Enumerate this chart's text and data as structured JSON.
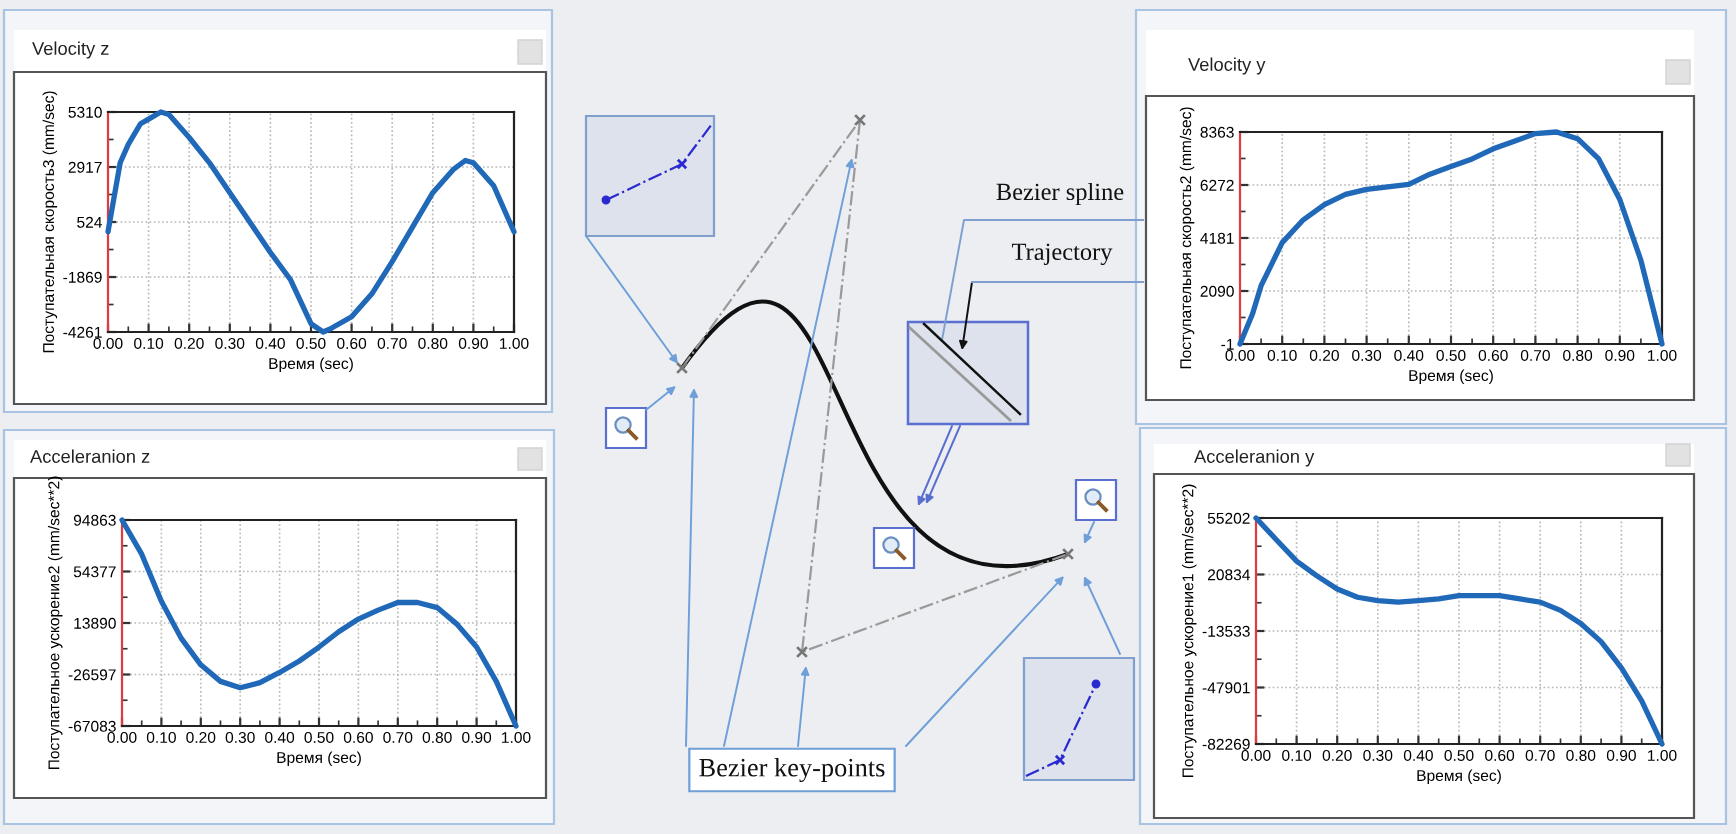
{
  "chart_data": [
    {
      "type": "line",
      "title": "Velocity z",
      "xlabel": "Время (sec)",
      "ylabel": "Поступательная скорость3 (mm/sec)",
      "x": [
        0,
        0.03,
        0.05,
        0.08,
        0.1,
        0.13,
        0.15,
        0.2,
        0.25,
        0.3,
        0.35,
        0.4,
        0.45,
        0.5,
        0.53,
        0.55,
        0.6,
        0.65,
        0.7,
        0.75,
        0.8,
        0.85,
        0.88,
        0.9,
        0.95,
        1
      ],
      "series": [
        {
          "color": "#2068b8",
          "values": [
            100,
            3100,
            3900,
            4800,
            5000,
            5310,
            5200,
            4200,
            3100,
            1800,
            500,
            -800,
            -2000,
            -3900,
            -4261,
            -4100,
            -3600,
            -2600,
            -1200,
            300,
            1800,
            2800,
            3200,
            3100,
            2100,
            100
          ]
        }
      ],
      "xlim": [
        0,
        1
      ],
      "ylim": [
        -4261,
        5310
      ],
      "xticks": [
        {
          "value": 0,
          "label": "0.00"
        },
        {
          "value": 0.1,
          "label": "0.10"
        },
        {
          "value": 0.2,
          "label": "0.20"
        },
        {
          "value": 0.3,
          "label": "0.30"
        },
        {
          "value": 0.4,
          "label": "0.40"
        },
        {
          "value": 0.5,
          "label": "0.50"
        },
        {
          "value": 0.6,
          "label": "0.60"
        },
        {
          "value": 0.7,
          "label": "0.70"
        },
        {
          "value": 0.8,
          "label": "0.80"
        },
        {
          "value": 0.9,
          "label": "0.90"
        },
        {
          "value": 1,
          "label": "1.00"
        },
        {
          "value": 0.05,
          "label": null
        },
        {
          "value": 0.15,
          "label": null
        },
        {
          "value": 0.25,
          "label": null
        },
        {
          "value": 0.35,
          "label": null
        },
        {
          "value": 0.45,
          "label": null
        },
        {
          "value": 0.55,
          "label": null
        },
        {
          "value": 0.65,
          "label": null
        },
        {
          "value": 0.75,
          "label": null
        },
        {
          "value": 0.85,
          "label": null
        },
        {
          "value": 0.95,
          "label": null
        }
      ],
      "yticks": [
        -4261,
        -1869,
        524,
        2917,
        5310,
        {
          "value": -3065,
          "label": null
        },
        {
          "value": -673,
          "label": null
        },
        {
          "value": 1721,
          "label": null
        },
        {
          "value": 4114,
          "label": null
        }
      ],
      "grid": true
    },
    {
      "type": "other",
      "annotations": [
        "Bezier spline",
        "Trajectory",
        "Bezier key-points"
      ]
    },
    {
      "type": "line",
      "title": "Velocity y",
      "xlabel": "Время (sec)",
      "ylabel": "Поступательная скорость2 (mm/sec)",
      "x": [
        0,
        0.03,
        0.05,
        0.1,
        0.15,
        0.2,
        0.25,
        0.3,
        0.35,
        0.4,
        0.45,
        0.5,
        0.55,
        0.6,
        0.65,
        0.7,
        0.75,
        0.8,
        0.85,
        0.9,
        0.95,
        1
      ],
      "series": [
        {
          "color": "#2068b8",
          "values": [
            -1,
            1200,
            2300,
            4000,
            4900,
            5500,
            5900,
            6100,
            6200,
            6300,
            6700,
            7000,
            7300,
            7700,
            8000,
            8300,
            8363,
            8100,
            7300,
            5700,
            3300,
            -1
          ]
        }
      ],
      "xlim": [
        0,
        1
      ],
      "ylim": [
        -1,
        8363
      ],
      "xticks": [
        {
          "value": 0,
          "label": "0.00"
        },
        {
          "value": 0.1,
          "label": "0.10"
        },
        {
          "value": 0.2,
          "label": "0.20"
        },
        {
          "value": 0.3,
          "label": "0.30"
        },
        {
          "value": 0.4,
          "label": "0.40"
        },
        {
          "value": 0.5,
          "label": "0.50"
        },
        {
          "value": 0.6,
          "label": "0.60"
        },
        {
          "value": 0.7,
          "label": "0.70"
        },
        {
          "value": 0.8,
          "label": "0.80"
        },
        {
          "value": 0.9,
          "label": "0.90"
        },
        {
          "value": 1,
          "label": "1.00"
        },
        {
          "value": 0.05,
          "label": null
        },
        {
          "value": 0.15,
          "label": null
        },
        {
          "value": 0.25,
          "label": null
        },
        {
          "value": 0.35,
          "label": null
        },
        {
          "value": 0.45,
          "label": null
        },
        {
          "value": 0.55,
          "label": null
        },
        {
          "value": 0.65,
          "label": null
        },
        {
          "value": 0.75,
          "label": null
        },
        {
          "value": 0.85,
          "label": null
        },
        {
          "value": 0.95,
          "label": null
        }
      ],
      "yticks": [
        -1,
        2090,
        4181,
        6272,
        8363,
        {
          "value": 1045,
          "label": null
        },
        {
          "value": 3136,
          "label": null
        },
        {
          "value": 5227,
          "label": null
        },
        {
          "value": 7318,
          "label": null
        }
      ],
      "grid": true
    },
    {
      "type": "line",
      "title": "Acceleranion z",
      "xlabel": "Время (sec)",
      "ylabel": "Поступательное ускорение2 (mm/sec**2)",
      "x": [
        0,
        0.05,
        0.1,
        0.15,
        0.2,
        0.25,
        0.3,
        0.35,
        0.4,
        0.45,
        0.5,
        0.55,
        0.6,
        0.65,
        0.7,
        0.75,
        0.8,
        0.85,
        0.9,
        0.95,
        1
      ],
      "series": [
        {
          "color": "#2068b8",
          "values": [
            94863,
            68000,
            31000,
            2000,
            -19000,
            -32000,
            -37000,
            -33000,
            -25000,
            -16000,
            -5000,
            7000,
            17000,
            24000,
            30000,
            30000,
            26000,
            13000,
            -5000,
            -32000,
            -67083
          ]
        }
      ],
      "xlim": [
        0,
        1
      ],
      "ylim": [
        -67083,
        94863
      ],
      "xticks": [
        {
          "value": 0,
          "label": "0.00"
        },
        {
          "value": 0.1,
          "label": "0.10"
        },
        {
          "value": 0.2,
          "label": "0.20"
        },
        {
          "value": 0.3,
          "label": "0.30"
        },
        {
          "value": 0.4,
          "label": "0.40"
        },
        {
          "value": 0.5,
          "label": "0.50"
        },
        {
          "value": 0.6,
          "label": "0.60"
        },
        {
          "value": 0.7,
          "label": "0.70"
        },
        {
          "value": 0.8,
          "label": "0.80"
        },
        {
          "value": 0.9,
          "label": "0.90"
        },
        {
          "value": 1,
          "label": "1.00"
        },
        {
          "value": 0.05,
          "label": null
        },
        {
          "value": 0.15,
          "label": null
        },
        {
          "value": 0.25,
          "label": null
        },
        {
          "value": 0.35,
          "label": null
        },
        {
          "value": 0.45,
          "label": null
        },
        {
          "value": 0.55,
          "label": null
        },
        {
          "value": 0.65,
          "label": null
        },
        {
          "value": 0.75,
          "label": null
        },
        {
          "value": 0.85,
          "label": null
        },
        {
          "value": 0.95,
          "label": null
        }
      ],
      "yticks": [
        -67083,
        -26597,
        13890,
        54377,
        94863,
        {
          "value": -46840,
          "label": null
        },
        {
          "value": -6354,
          "label": null
        },
        {
          "value": 34134,
          "label": null
        },
        {
          "value": 74620,
          "label": null
        }
      ],
      "grid": true
    },
    {
      "type": "line",
      "title": "Acceleranion y",
      "xlabel": "Время (sec)",
      "ylabel": "Поступательное ускорение1 (mm/sec**2)",
      "x": [
        0,
        0.05,
        0.1,
        0.15,
        0.2,
        0.25,
        0.3,
        0.35,
        0.4,
        0.45,
        0.5,
        0.55,
        0.6,
        0.65,
        0.7,
        0.75,
        0.8,
        0.85,
        0.9,
        0.95,
        1
      ],
      "series": [
        {
          "color": "#2068b8",
          "values": [
            55202,
            42000,
            29000,
            20000,
            12000,
            7000,
            5000,
            4000,
            5000,
            6000,
            8000,
            8000,
            8000,
            6000,
            4000,
            -1000,
            -9000,
            -20000,
            -36000,
            -56000,
            -82269
          ]
        }
      ],
      "xlim": [
        0,
        1
      ],
      "ylim": [
        -82269,
        55202
      ],
      "xticks": [
        {
          "value": 0,
          "label": "0.00"
        },
        {
          "value": 0.1,
          "label": "0.10"
        },
        {
          "value": 0.2,
          "label": "0.20"
        },
        {
          "value": 0.3,
          "label": "0.30"
        },
        {
          "value": 0.4,
          "label": "0.40"
        },
        {
          "value": 0.5,
          "label": "0.50"
        },
        {
          "value": 0.6,
          "label": "0.60"
        },
        {
          "value": 0.7,
          "label": "0.70"
        },
        {
          "value": 0.8,
          "label": "0.80"
        },
        {
          "value": 0.9,
          "label": "0.90"
        },
        {
          "value": 1,
          "label": "1.00"
        },
        {
          "value": 0.05,
          "label": null
        },
        {
          "value": 0.15,
          "label": null
        },
        {
          "value": 0.25,
          "label": null
        },
        {
          "value": 0.35,
          "label": null
        },
        {
          "value": 0.45,
          "label": null
        },
        {
          "value": 0.55,
          "label": null
        },
        {
          "value": 0.65,
          "label": null
        },
        {
          "value": 0.75,
          "label": null
        },
        {
          "value": 0.85,
          "label": null
        },
        {
          "value": 0.95,
          "label": null
        }
      ],
      "yticks": [
        -82269,
        -47901,
        -13533,
        20834,
        55202,
        {
          "value": -65085,
          "label": null
        },
        {
          "value": -30717,
          "label": null
        },
        {
          "value": 3651,
          "label": null
        },
        {
          "value": 38018,
          "label": null
        }
      ],
      "grid": true
    }
  ]
}
